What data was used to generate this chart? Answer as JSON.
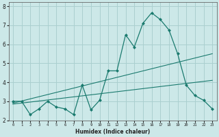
{
  "title": "",
  "xlabel": "Humidex (Indice chaleur)",
  "background_color": "#cce8e8",
  "grid_color": "#aacfcf",
  "line_color": "#1a7a6e",
  "xlim": [
    -0.5,
    23.5
  ],
  "ylim": [
    2.0,
    8.2
  ],
  "yticks": [
    2,
    3,
    4,
    5,
    6,
    7,
    8
  ],
  "xticks": [
    0,
    1,
    2,
    3,
    4,
    5,
    6,
    7,
    8,
    9,
    10,
    11,
    12,
    13,
    14,
    15,
    16,
    17,
    18,
    19,
    20,
    21,
    22,
    23
  ],
  "series1_x": [
    0,
    1,
    2,
    3,
    4,
    5,
    6,
    7,
    8,
    9,
    10,
    11,
    12,
    13,
    14,
    15,
    16,
    17,
    18,
    19,
    20,
    21,
    22,
    23
  ],
  "series1_y": [
    3.0,
    3.0,
    2.3,
    2.6,
    3.0,
    2.7,
    2.6,
    2.3,
    3.85,
    2.55,
    3.05,
    4.6,
    4.6,
    6.5,
    5.85,
    7.1,
    7.65,
    7.3,
    6.75,
    5.5,
    3.85,
    3.3,
    3.05,
    2.6
  ],
  "series2_x": [
    0,
    23
  ],
  "series2_y": [
    2.9,
    5.5
  ],
  "series3_x": [
    0,
    23
  ],
  "series3_y": [
    2.85,
    4.1
  ]
}
